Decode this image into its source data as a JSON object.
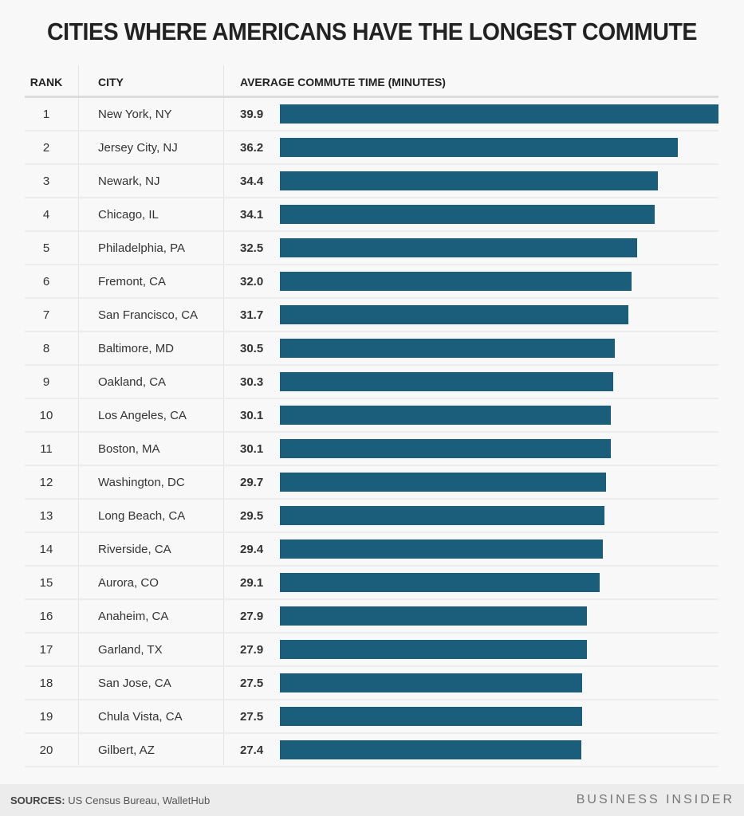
{
  "chart_data": {
    "type": "bar",
    "orientation": "horizontal",
    "title": "CITIES WHERE AMERICANS HAVE THE LONGEST COMMUTE",
    "columns": [
      "RANK",
      "CITY",
      "AVERAGE COMMUTE TIME (MINUTES)"
    ],
    "ranks": [
      "1",
      "2",
      "3",
      "4",
      "5",
      "6",
      "7",
      "8",
      "9",
      "10",
      "11",
      "12",
      "13",
      "14",
      "15",
      "16",
      "17",
      "18",
      "19",
      "20"
    ],
    "categories": [
      "New York, NY",
      "Jersey City, NJ",
      "Newark, NJ",
      "Chicago, IL",
      "Philadelphia, PA",
      "Fremont, CA",
      "San Francisco, CA",
      "Baltimore, MD",
      "Oakland, CA",
      "Los Angeles, CA",
      "Boston, MA",
      "Washington, DC",
      "Long Beach, CA",
      "Riverside, CA",
      "Aurora, CO",
      "Anaheim, CA",
      "Garland, TX",
      "San Jose, CA",
      "Chula Vista, CA",
      "Gilbert, AZ"
    ],
    "values": [
      39.9,
      36.2,
      34.4,
      34.1,
      32.5,
      32.0,
      31.7,
      30.5,
      30.3,
      30.1,
      30.1,
      29.7,
      29.5,
      29.4,
      29.1,
      27.9,
      27.9,
      27.5,
      27.5,
      27.4
    ],
    "value_labels": [
      "39.9",
      "36.2",
      "34.4",
      "34.1",
      "32.5",
      "32.0",
      "31.7",
      "30.5",
      "30.3",
      "30.1",
      "30.1",
      "29.7",
      "29.5",
      "29.4",
      "29.1",
      "27.9",
      "27.9",
      "27.5",
      "27.5",
      "27.4"
    ],
    "xlim": [
      0,
      39.9
    ],
    "bar_color": "#1b5e7b",
    "grid": false
  },
  "footer": {
    "sources_label": "SOURCES:",
    "sources_text": " US Census Bureau, WalletHub",
    "brand": "BUSINESS INSIDER"
  }
}
